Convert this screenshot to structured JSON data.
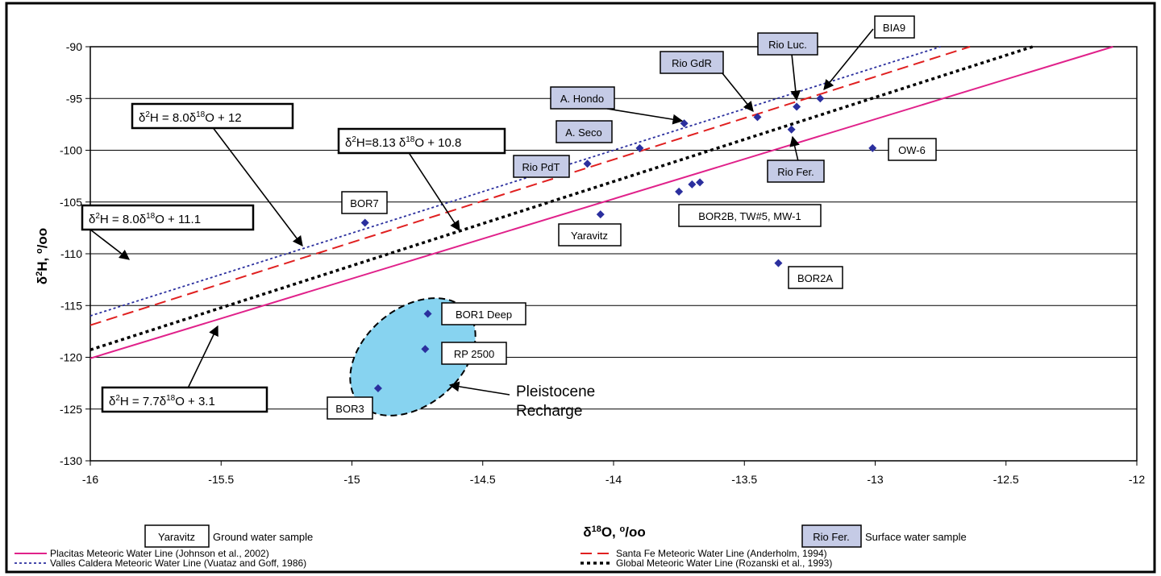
{
  "chart_data": {
    "type": "scatter",
    "xlabel": "δ18O, °/oo",
    "ylabel": "δ2H, °/oo",
    "xlim": [
      -16,
      -12
    ],
    "ylim": [
      -130,
      -90
    ],
    "x_ticks": [
      -16,
      -15.5,
      -15,
      -14.5,
      -14,
      -13.5,
      -13,
      -12.5,
      -12
    ],
    "y_ticks": [
      -90,
      -95,
      -100,
      -105,
      -110,
      -115,
      -120,
      -125,
      -130
    ],
    "grid": "horizontal",
    "points": [
      {
        "x": -14.95,
        "y": -107.0
      },
      {
        "x": -14.9,
        "y": -123.0
      },
      {
        "x": -14.71,
        "y": -115.8
      },
      {
        "x": -14.72,
        "y": -119.2
      },
      {
        "x": -14.1,
        "y": -101.3
      },
      {
        "x": -14.05,
        "y": -106.2
      },
      {
        "x": -13.9,
        "y": -99.8
      },
      {
        "x": -13.75,
        "y": -104.0
      },
      {
        "x": -13.73,
        "y": -97.4
      },
      {
        "x": -13.7,
        "y": -103.3
      },
      {
        "x": -13.67,
        "y": -103.1
      },
      {
        "x": -13.45,
        "y": -96.8
      },
      {
        "x": -13.37,
        "y": -110.9
      },
      {
        "x": -13.32,
        "y": -98.0
      },
      {
        "x": -13.3,
        "y": -95.8
      },
      {
        "x": -13.21,
        "y": -95.0
      },
      {
        "x": -13.01,
        "y": -99.8
      }
    ],
    "lines": [
      {
        "name": "Placitas Meteoric Water Line (Johnson et al., 2002)",
        "color": "#e0218a",
        "style": "solid",
        "slope": 7.7,
        "intercept": 3.1
      },
      {
        "name": "Valles Caldera Meteoric Water Line (Vuataz and Goff, 1986)",
        "color": "#2b2f9e",
        "style": "dotted",
        "slope": 8.0,
        "intercept": 12
      },
      {
        "name": "Santa Fe Meteoric Water Line (Anderholm, 1994)",
        "color": "#e02020",
        "style": "dashed",
        "slope": 8.0,
        "intercept": 11.1
      },
      {
        "name": "Global Meteoric Water Line (Rozanski et al., 1993)",
        "color": "#000000",
        "style": "dotted-bold",
        "slope": 8.13,
        "intercept": 10.8
      }
    ],
    "annotations": {
      "ground_water_labels": [
        "BOR7",
        "Yaravitz",
        "BOR2B, TW#5, MW-1",
        "BOR2A",
        "BOR1 Deep",
        "RP 2500",
        "BOR3",
        "OW-6"
      ],
      "surface_water_labels": [
        "A. Hondo",
        "A. Seco",
        "Rio PdT",
        "Rio GdR",
        "Rio Luc.",
        "Rio Fer.",
        "BIA9"
      ],
      "equations": [
        {
          "base": "δ",
          "sup1": "2",
          "mid": "H = 8.0δ",
          "sup2": "18",
          "tail": "O + 12"
        },
        {
          "base": "δ",
          "sup1": "2",
          "mid": "H=8.13 δ",
          "sup2": "18",
          "tail": "O + 10.8"
        },
        {
          "base": "δ",
          "sup1": "2",
          "mid": "H = 8.0δ",
          "sup2": "18",
          "tail": "O + 11.1"
        },
        {
          "base": "δ",
          "sup1": "2",
          "mid": "H = 7.7δ",
          "sup2": "18",
          "tail": "O + 3.1"
        }
      ],
      "region_label_line1": "Pleistocene",
      "region_label_line2": "Recharge"
    },
    "key": {
      "ground_box": "Yaravitz",
      "ground_text": "Ground water sample",
      "surface_box": "Rio Fer.",
      "surface_text": "Surface water sample"
    }
  },
  "colors": {
    "point": "#2b2f9e",
    "surface_box_fill": "#c5cbe6",
    "recharge_fill": "#87d3f0"
  }
}
